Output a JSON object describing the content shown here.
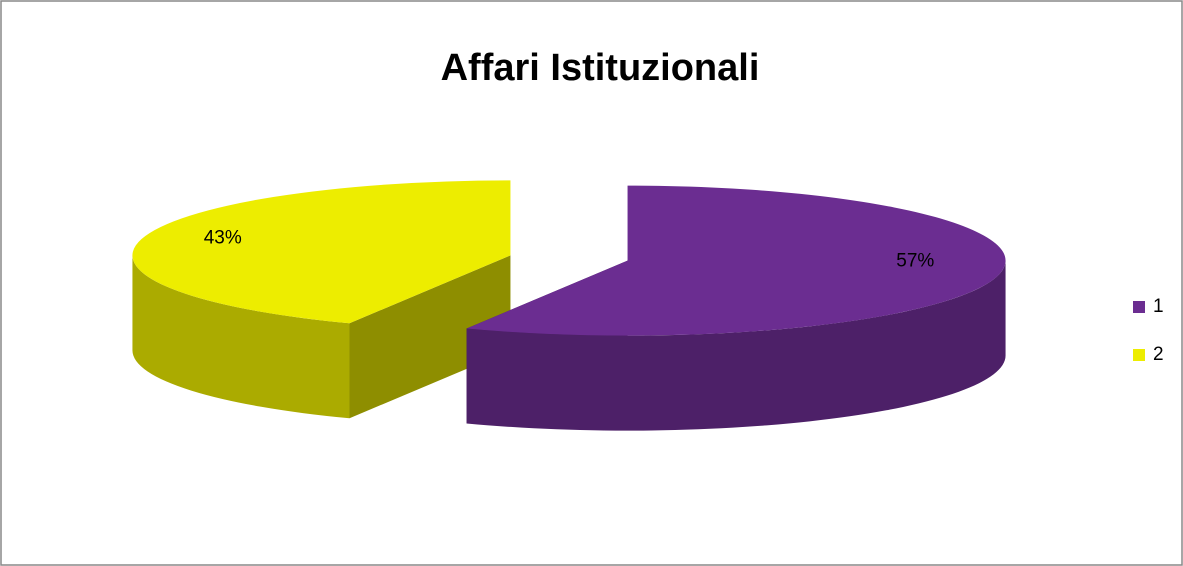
{
  "chart_data": {
    "type": "pie",
    "title": "Affari Istituzionali",
    "categories": [
      "1",
      "2"
    ],
    "values": [
      57,
      43
    ],
    "value_labels": [
      "57%",
      "43%"
    ],
    "colors": [
      "#6b2d91",
      "#eded00"
    ],
    "legend": "right"
  }
}
